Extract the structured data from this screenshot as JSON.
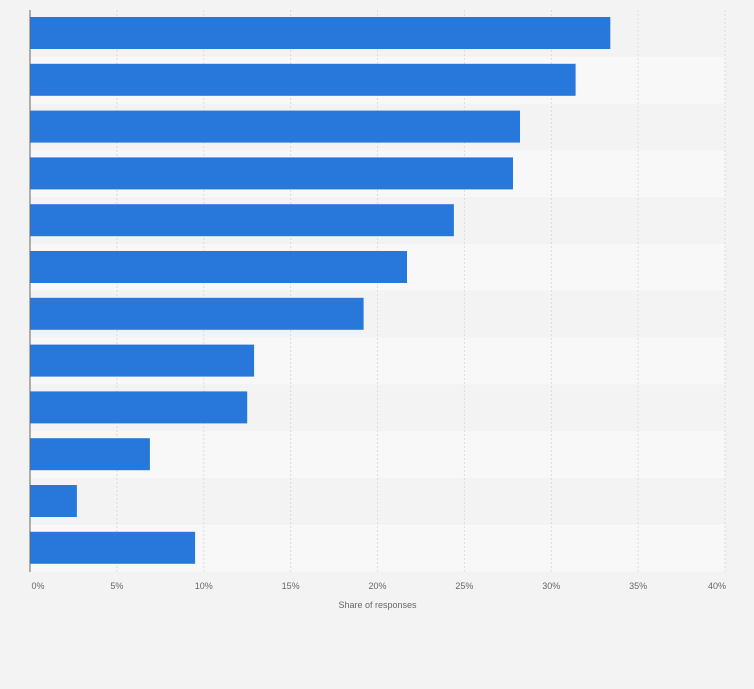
{
  "chart_data": {
    "type": "bar",
    "orientation": "horizontal",
    "title": "",
    "xlabel": "Share of responses",
    "ylabel": "",
    "xlim": [
      0,
      40
    ],
    "x_ticks": [
      0,
      5,
      10,
      15,
      20,
      25,
      30,
      35,
      40
    ],
    "x_tick_labels": [
      "0%",
      "5%",
      "10%",
      "15%",
      "20%",
      "25%",
      "30%",
      "35%",
      "40%"
    ],
    "categories": [
      "",
      "",
      "",
      "",
      "",
      "",
      "",
      "",
      "",
      "",
      "",
      ""
    ],
    "values": [
      33.4,
      31.4,
      28.2,
      27.8,
      24.4,
      21.7,
      19.2,
      12.9,
      12.5,
      6.9,
      2.7,
      9.5
    ],
    "grid": true,
    "legend": "none"
  },
  "colors": {
    "bar": "#2878dc",
    "band_dark": "#f3f3f3",
    "band_light": "#f8f8f8",
    "grid": "#dcdcdc",
    "axis": "#666666",
    "page_background": "#f3f3f3"
  }
}
